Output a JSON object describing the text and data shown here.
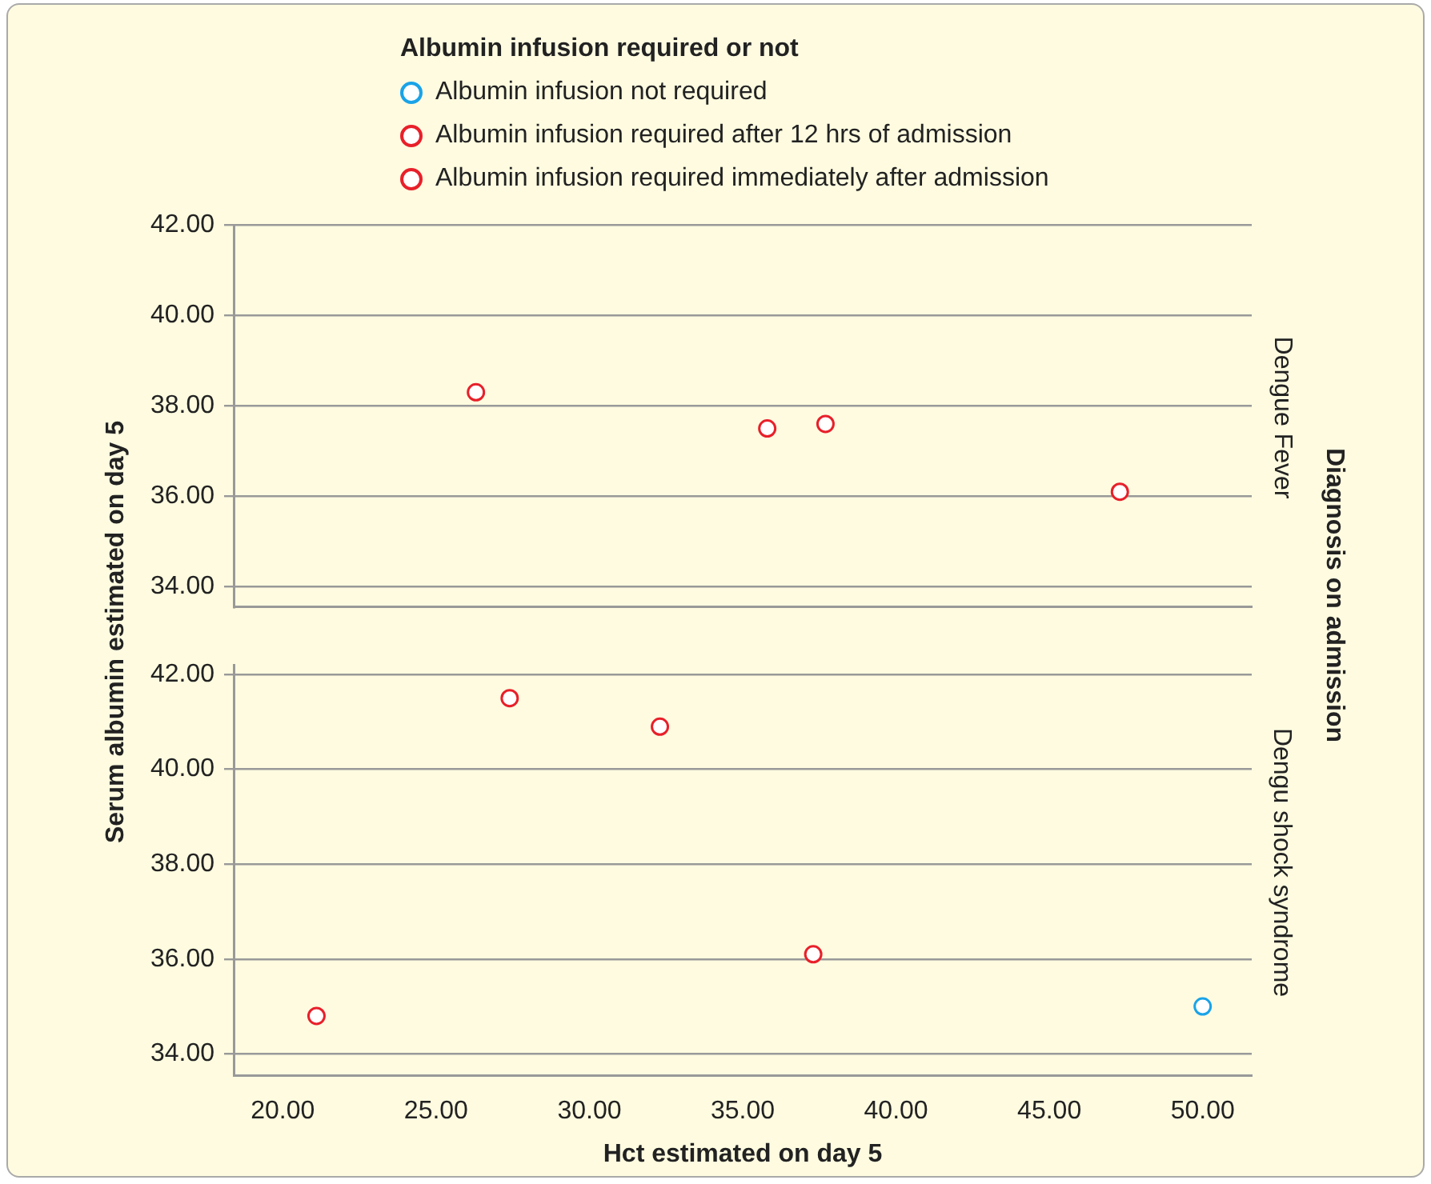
{
  "chart_data": [
    {
      "type": "scatter",
      "legend_title": "Albumin infusion required or not",
      "legend": "top",
      "ylabel": "Serum albumin estimated on day 5",
      "y2label": "Dengue Fever",
      "annotations": [
        "Diagnosis on admission"
      ],
      "grid": "y",
      "marker": "circle",
      "tick_labels": "y",
      "xlim": [
        18.4,
        51.6
      ],
      "ylim": [
        33.55,
        42
      ],
      "yticks": [
        {
          "value": 34,
          "label": "34.00"
        },
        {
          "value": 36,
          "label": "36.00"
        },
        {
          "value": 38,
          "label": "38.00"
        },
        {
          "value": 40,
          "label": "40.00"
        },
        {
          "value": 42,
          "label": "42.00"
        }
      ],
      "series": [
        {
          "name": "Albumin infusion not required",
          "color": "#1aa3e8"
        },
        {
          "name": "Albumin infusion required after 12 hrs of admission",
          "color": "#e8202a",
          "x": [
            26.3,
            35.8,
            37.7,
            47.3
          ],
          "values": [
            38.3,
            37.5,
            37.6,
            36.1
          ]
        },
        {
          "name": "Albumin infusion required immediately after admission",
          "color": "#e8202a"
        }
      ]
    },
    {
      "type": "scatter",
      "xlabel": "Hct estimated on day 5",
      "y2label": "Dengu shock syndrome",
      "grid": "y",
      "marker": "circle",
      "xlim": [
        18.4,
        51.6
      ],
      "ylim": [
        33.55,
        42.2
      ],
      "xticks": [
        {
          "value": 20,
          "label": "20.00"
        },
        {
          "value": 25,
          "label": "25.00"
        },
        {
          "value": 30,
          "label": "30.00"
        },
        {
          "value": 35,
          "label": "35.00"
        },
        {
          "value": 40,
          "label": "40.00"
        },
        {
          "value": 45,
          "label": "45.00"
        },
        {
          "value": 50,
          "label": "50.00"
        }
      ],
      "yticks": [
        {
          "value": 34,
          "label": "34.00"
        },
        {
          "value": 36,
          "label": "36.00"
        },
        {
          "value": 38,
          "label": "38.00"
        },
        {
          "value": 40,
          "label": "40.00"
        },
        {
          "value": 42,
          "label": "42.00"
        }
      ],
      "series": [
        {
          "color": "#1aa3e8",
          "x": [
            50.0
          ],
          "values": [
            35.0
          ]
        },
        {
          "color": "#e8202a",
          "x": [
            27.4
          ],
          "values": [
            41.5
          ]
        },
        {
          "color": "#e8202a",
          "x": [
            21.1,
            32.3,
            37.3
          ],
          "values": [
            34.8,
            40.9,
            36.1
          ]
        }
      ]
    }
  ]
}
